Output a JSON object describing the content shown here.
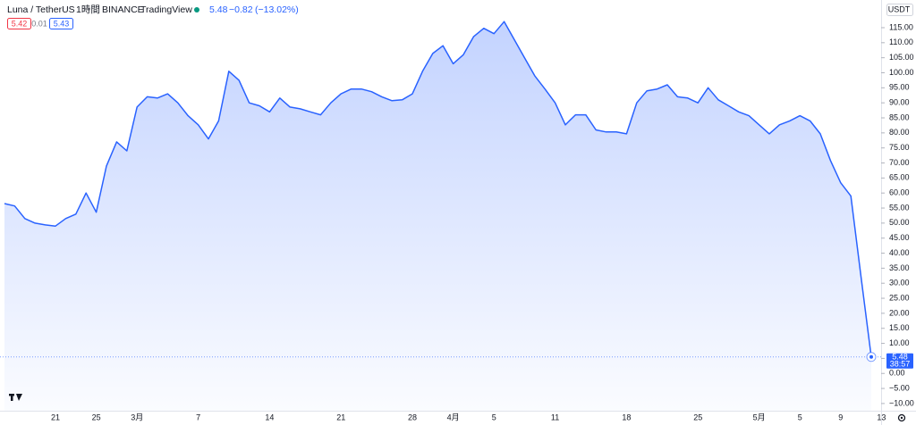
{
  "chart_data": {
    "type": "area",
    "title": "Luna / TetherUS",
    "interval": "1時間",
    "exchange": "BINANCE",
    "source": "TradingView",
    "header_price": "5.48",
    "header_change": "−0.82",
    "header_change_pct": "(−13.02%)",
    "bid": "5.42",
    "spread": "0.01",
    "ask": "5.43",
    "currency": "USDT",
    "last_value": 5.48,
    "last_value_label": "5.48",
    "countdown": "38:57",
    "color": "#2962ff",
    "categories": [
      null,
      null,
      null,
      null,
      null,
      "21",
      null,
      null,
      null,
      "25",
      null,
      null,
      null,
      "3月",
      null,
      null,
      null,
      null,
      null,
      "7",
      null,
      null,
      null,
      null,
      null,
      null,
      "14",
      null,
      null,
      null,
      null,
      null,
      null,
      "21",
      null,
      null,
      null,
      null,
      null,
      null,
      "28",
      null,
      null,
      null,
      "4月",
      null,
      null,
      null,
      "5",
      null,
      null,
      null,
      null,
      null,
      "11",
      null,
      null,
      null,
      null,
      null,
      null,
      "18",
      null,
      null,
      null,
      null,
      null,
      null,
      "25",
      null,
      null,
      null,
      null,
      null,
      "5月",
      null,
      null,
      null,
      "5",
      null,
      null,
      null,
      "9",
      null,
      null,
      null,
      "13"
    ],
    "values": [
      56.5,
      55.7,
      51.5,
      50,
      49.4,
      49,
      51.5,
      53,
      60,
      53.6,
      69,
      77,
      74,
      88.6,
      92,
      91.6,
      93,
      90,
      85.7,
      82.7,
      78,
      84,
      100.5,
      97.5,
      90,
      89,
      87,
      91.6,
      88.6,
      88,
      87,
      86,
      90,
      93,
      94.6,
      94.6,
      93.7,
      92,
      90.7,
      91,
      93,
      100.5,
      106.4,
      109,
      103,
      106,
      112,
      114.8,
      113,
      117,
      111,
      105,
      99,
      94.6,
      90,
      82.7,
      86,
      86,
      81,
      80.3,
      80.3,
      79.7,
      90,
      94,
      94.6,
      96,
      92,
      91.6,
      90,
      95,
      91,
      89,
      87,
      85.7,
      82.7,
      79.7,
      82.7,
      84,
      85.7,
      84,
      79.7,
      70.8,
      63.4,
      59,
      32,
      5.48,
      null
    ],
    "ylim": [
      -12.4,
      124.2
    ],
    "yticks": [
      {
        "value": 115,
        "label": "115.00"
      },
      {
        "value": 110,
        "label": "110.00"
      },
      {
        "value": 105,
        "label": "105.00"
      },
      {
        "value": 100,
        "label": "100.00"
      },
      {
        "value": 95,
        "label": "95.00"
      },
      {
        "value": 90,
        "label": "90.00"
      },
      {
        "value": 85,
        "label": "85.00"
      },
      {
        "value": 80,
        "label": "80.00"
      },
      {
        "value": 75,
        "label": "75.00"
      },
      {
        "value": 70,
        "label": "70.00"
      },
      {
        "value": 65,
        "label": "65.00"
      },
      {
        "value": 60,
        "label": "60.00"
      },
      {
        "value": 55,
        "label": "55.00"
      },
      {
        "value": 50,
        "label": "50.00"
      },
      {
        "value": 45,
        "label": "45.00"
      },
      {
        "value": 40,
        "label": "40.00"
      },
      {
        "value": 35,
        "label": "35.00"
      },
      {
        "value": 30,
        "label": "30.00"
      },
      {
        "value": 25,
        "label": "25.00"
      },
      {
        "value": 20,
        "label": "20.00"
      },
      {
        "value": 15,
        "label": "15.00"
      },
      {
        "value": 10,
        "label": "10.00"
      },
      {
        "value": 5,
        "label": "5.00"
      },
      {
        "value": 0,
        "label": "0.00"
      },
      {
        "value": -5,
        "label": "−5.00"
      },
      {
        "value": -10,
        "label": "−10.00"
      }
    ]
  }
}
